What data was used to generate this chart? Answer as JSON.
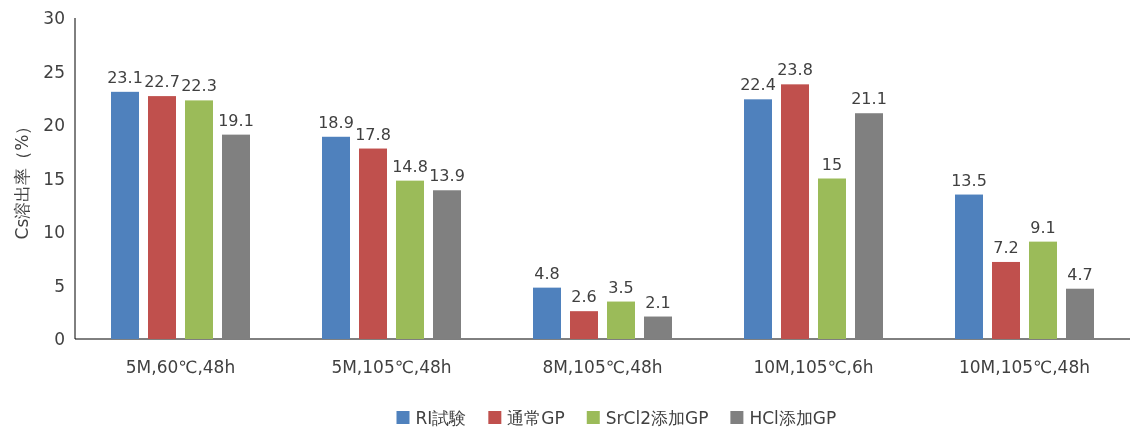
{
  "chart_data": {
    "type": "bar",
    "ylabel": "Cs溶出率（%）",
    "categories": [
      "5M,60℃,48h",
      "5M,105℃,48h",
      "8M,105℃,48h",
      "10M,105℃,6h",
      "10M,105℃,48h"
    ],
    "series": [
      {
        "name": "RI試験",
        "color": "#4f81bd",
        "values": [
          23.1,
          18.9,
          4.8,
          22.4,
          13.5
        ]
      },
      {
        "name": "通常GP",
        "color": "#c0504d",
        "values": [
          22.7,
          17.8,
          2.6,
          23.8,
          7.2
        ]
      },
      {
        "name": "SrCl2添加GP",
        "color": "#9bbb59",
        "values": [
          22.3,
          14.8,
          3.5,
          15,
          9.1
        ]
      },
      {
        "name": "HCl添加GP",
        "color": "#808080",
        "values": [
          19.1,
          13.9,
          2.1,
          21.1,
          4.7
        ]
      }
    ],
    "ylim": [
      0,
      30
    ],
    "yticks": [
      0,
      5,
      10,
      15,
      20,
      25,
      30
    ],
    "data_labels": true,
    "legend": "bottom"
  }
}
